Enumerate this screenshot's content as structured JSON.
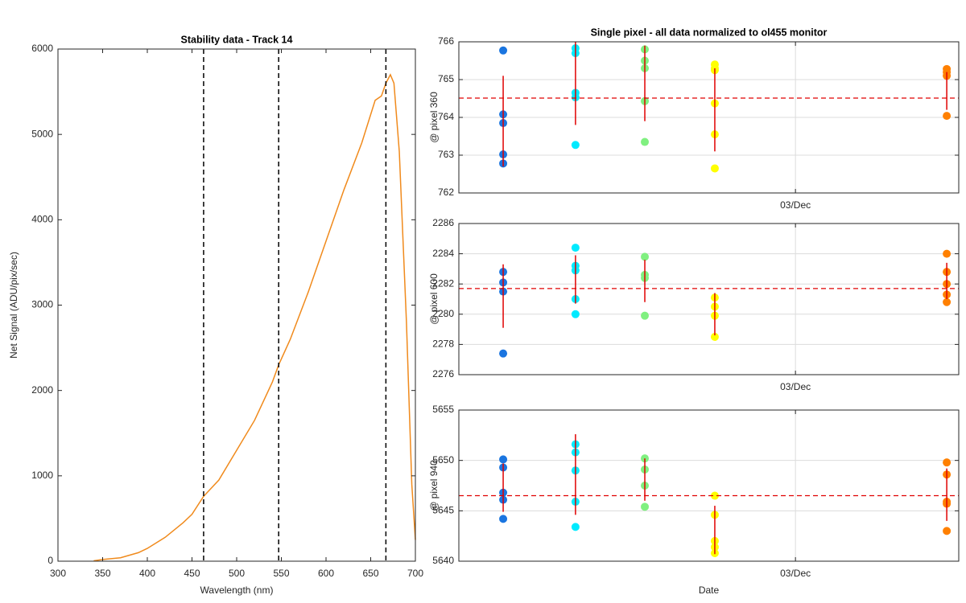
{
  "chart_data": [
    {
      "type": "line",
      "title": "Stability data - Track 14",
      "xlabel": "Wavelength (nm)",
      "ylabel": "Net Signal (ADU/pix/sec)",
      "x": [
        340,
        350,
        370,
        390,
        400,
        420,
        440,
        450,
        463,
        480,
        500,
        520,
        540,
        547,
        560,
        580,
        600,
        620,
        640,
        655,
        662,
        667,
        672,
        676,
        682,
        690,
        696,
        700
      ],
      "values": [
        5,
        20,
        40,
        100,
        150,
        280,
        450,
        550,
        760,
        950,
        1300,
        1650,
        2100,
        2300,
        2600,
        3150,
        3750,
        4350,
        4900,
        5400,
        5450,
        5600,
        5700,
        5600,
        4800,
        2800,
        900,
        250
      ],
      "color": "#f08a1c",
      "vlines": [
        463,
        547,
        667
      ],
      "xlim": [
        300,
        700
      ],
      "ylim": [
        0,
        6000
      ],
      "xticks": [
        300,
        350,
        400,
        450,
        500,
        550,
        600,
        650,
        700
      ],
      "yticks": [
        0,
        1000,
        2000,
        3000,
        4000,
        5000,
        6000
      ],
      "grid": false
    },
    {
      "type": "scatter",
      "title": "Single pixel - all data normalized to ol455 monitor",
      "ylabel": "@ pixel 360",
      "xlim": [
        1.99,
        3.49
      ],
      "ylim": [
        762,
        766
      ],
      "xticks": [
        {
          "value": 3,
          "label": "03/Dec"
        }
      ],
      "yticks": [
        762,
        763,
        764,
        765,
        766
      ],
      "grid": true,
      "series": [
        {
          "color": "#1a75e0",
          "x": [
            2.123,
            2.123,
            2.123,
            2.123,
            2.123
          ],
          "values": [
            765.77,
            764.08,
            763.85,
            763.02,
            762.78
          ]
        },
        {
          "color": "#00eaff",
          "x": [
            2.34,
            2.34,
            2.34,
            2.34,
            2.34
          ],
          "values": [
            765.83,
            765.7,
            764.65,
            764.53,
            763.27
          ]
        },
        {
          "color": "#80f080",
          "x": [
            2.548,
            2.548,
            2.548,
            2.548,
            2.548
          ],
          "values": [
            765.8,
            765.5,
            765.3,
            764.43,
            763.35
          ]
        },
        {
          "color": "#ffff00",
          "x": [
            2.758,
            2.758,
            2.758,
            2.758,
            2.758,
            2.758
          ],
          "values": [
            765.4,
            765.3,
            765.25,
            764.37,
            763.55,
            762.65
          ]
        },
        {
          "color": "#ff8000",
          "x": [
            3.454,
            3.454,
            3.454,
            3.454
          ],
          "values": [
            765.28,
            765.2,
            765.1,
            764.04
          ]
        }
      ],
      "error_bars": {
        "color": "#e00000",
        "x": [
          2.123,
          2.34,
          2.548,
          2.758,
          3.454
        ],
        "mean": [
          763.9,
          764.9,
          764.9,
          764.2,
          764.7
        ],
        "error": [
          1.2,
          1.1,
          1.0,
          1.1,
          0.5
        ]
      },
      "hline": 764.51,
      "hline_color": "#e00000"
    },
    {
      "type": "scatter",
      "ylabel": "@ pixel 600",
      "xlim": [
        1.99,
        3.49
      ],
      "ylim": [
        2276,
        2286
      ],
      "xticks": [
        {
          "value": 3,
          "label": "03/Dec"
        }
      ],
      "yticks": [
        2276,
        2278,
        2280,
        2282,
        2284,
        2286
      ],
      "grid": true,
      "series": [
        {
          "color": "#1a75e0",
          "x": [
            2.123,
            2.123,
            2.123,
            2.123
          ],
          "values": [
            2282.8,
            2282.1,
            2281.5,
            2277.4
          ]
        },
        {
          "color": "#00eaff",
          "x": [
            2.34,
            2.34,
            2.34,
            2.34,
            2.34
          ],
          "values": [
            2284.4,
            2283.2,
            2282.9,
            2281.0,
            2280.0
          ]
        },
        {
          "color": "#80f080",
          "x": [
            2.548,
            2.548,
            2.548,
            2.548
          ],
          "values": [
            2283.8,
            2282.6,
            2282.4,
            2279.9
          ]
        },
        {
          "color": "#ffff00",
          "x": [
            2.758,
            2.758,
            2.758,
            2.758
          ],
          "values": [
            2281.1,
            2280.5,
            2279.9,
            2278.5
          ]
        },
        {
          "color": "#ff8000",
          "x": [
            3.454,
            3.454,
            3.454,
            3.454,
            3.454
          ],
          "values": [
            2284.0,
            2282.8,
            2282.0,
            2281.3,
            2280.8
          ]
        }
      ],
      "error_bars": {
        "color": "#e00000",
        "x": [
          2.123,
          2.34,
          2.548,
          2.758,
          3.454
        ],
        "mean": [
          2281.2,
          2282.3,
          2282.2,
          2280.0,
          2282.2
        ],
        "error": [
          2.1,
          1.6,
          1.4,
          1.4,
          1.2
        ]
      },
      "hline": 2281.7,
      "hline_color": "#e00000"
    },
    {
      "type": "scatter",
      "ylabel": "@ pixel 940",
      "xlabel": "Date",
      "xlim": [
        1.99,
        3.49
      ],
      "ylim": [
        5640,
        5655
      ],
      "xticks": [
        {
          "value": 3,
          "label": "03/Dec"
        }
      ],
      "yticks": [
        5640,
        5645,
        5650,
        5655
      ],
      "grid": true,
      "series": [
        {
          "color": "#1a75e0",
          "x": [
            2.123,
            2.123,
            2.123,
            2.123,
            2.123
          ],
          "values": [
            5650.1,
            5649.3,
            5646.8,
            5646.1,
            5644.2
          ]
        },
        {
          "color": "#00eaff",
          "x": [
            2.34,
            2.34,
            2.34,
            2.34,
            2.34
          ],
          "values": [
            5651.6,
            5650.8,
            5649.0,
            5645.9,
            5643.4
          ]
        },
        {
          "color": "#80f080",
          "x": [
            2.548,
            2.548,
            2.548,
            2.548
          ],
          "values": [
            5650.2,
            5649.1,
            5647.5,
            5645.4
          ]
        },
        {
          "color": "#ffff00",
          "x": [
            2.758,
            2.758,
            2.758,
            2.758,
            2.758
          ],
          "values": [
            5646.5,
            5644.6,
            5642.0,
            5641.4,
            5640.8
          ]
        },
        {
          "color": "#ff8000",
          "x": [
            3.454,
            3.454,
            3.454,
            3.454,
            3.454
          ],
          "values": [
            5649.8,
            5648.6,
            5645.9,
            5645.7,
            5643.0
          ]
        }
      ],
      "error_bars": {
        "color": "#e00000",
        "x": [
          2.123,
          2.34,
          2.548,
          2.758,
          3.454
        ],
        "mean": [
          5647.3,
          5648.6,
          5648.1,
          5643.1,
          5646.6
        ],
        "error": [
          2.4,
          4.0,
          2.1,
          2.4,
          2.6
        ]
      },
      "hline": 5646.5,
      "hline_color": "#e00000"
    }
  ]
}
